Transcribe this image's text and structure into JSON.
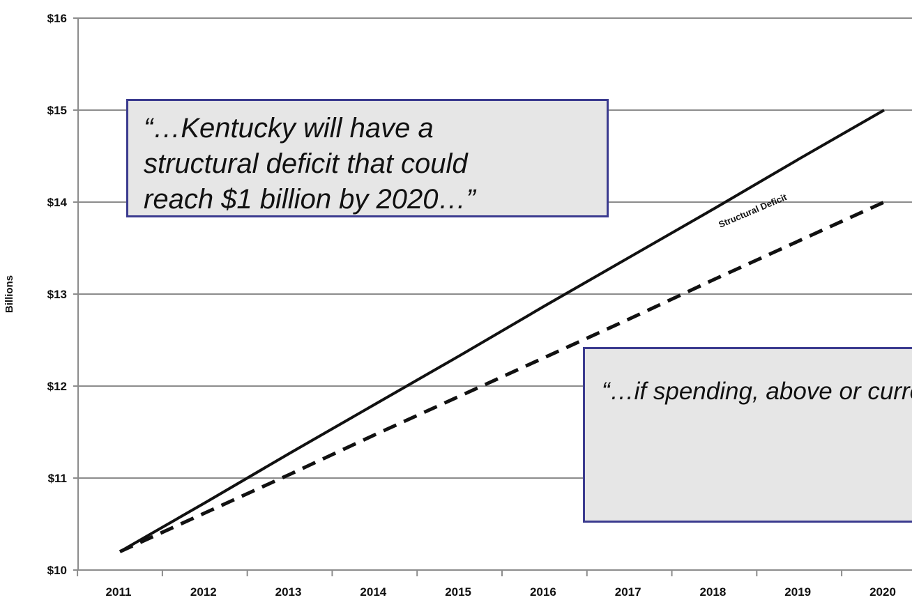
{
  "chart_data": {
    "type": "line",
    "x": [
      "2011",
      "2012",
      "2013",
      "2014",
      "2015",
      "2016",
      "2017",
      "2018",
      "2019",
      "2020"
    ],
    "series": [
      {
        "name": "Structural Deficit",
        "style": "solid",
        "color": "#111111",
        "values": [
          10.2,
          10.73,
          11.27,
          11.8,
          12.33,
          12.87,
          13.4,
          13.93,
          14.47,
          15.0
        ]
      },
      {
        "name": "",
        "style": "dashed",
        "color": "#111111",
        "values": [
          10.2,
          10.62,
          11.04,
          11.47,
          11.89,
          12.31,
          12.73,
          13.16,
          13.58,
          14.0
        ]
      }
    ],
    "ylabel": "Billions",
    "yticks": [
      "$10",
      "$11",
      "$12",
      "$13",
      "$14",
      "$15",
      "$16"
    ],
    "ylim": [
      10,
      16
    ],
    "grid": true,
    "annotations": [
      "“…Kentucky will have a\nstructural deficit that could\nreach $1 billion by 2020…”",
      "“…if spending, above or\ncurrent levels, is to be re\nstable as a share of inco\ndo not have the tax struc\nsupport it.”"
    ],
    "colors": {
      "grid": "#8c8c8c",
      "callout_fill": "#e6e6e6",
      "callout_border": "#3b3b8f"
    }
  }
}
